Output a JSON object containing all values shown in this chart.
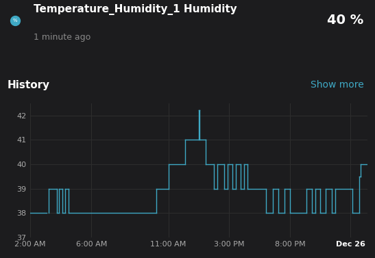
{
  "background_color": "#1c1c1e",
  "plot_bg_color": "#1c1c1e",
  "grid_color": "#2e2e2e",
  "line_color": "#3fa9c5",
  "title_text": "Temperature_Humidity_1 Humidity",
  "subtitle_text": "1 minute ago",
  "value_text": "40 %",
  "history_text": "History",
  "show_more_text": "Show more",
  "show_more_color": "#3fa9c5",
  "title_color": "#ffffff",
  "subtitle_color": "#888888",
  "value_color": "#ffffff",
  "history_color": "#ffffff",
  "ylabel_text": "%",
  "ylim": [
    37,
    42.5
  ],
  "yticks": [
    37,
    38,
    39,
    40,
    41,
    42
  ],
  "xtick_labels": [
    "2:00 AM",
    "6:00 AM",
    "11:00 AM",
    "3:00 PM",
    "8:00 PM",
    "Dec 26"
  ],
  "xtick_positions": [
    0.0,
    0.182,
    0.41,
    0.59,
    0.77,
    0.95
  ],
  "segments": [
    {
      "x": [
        0.0,
        0.05
      ],
      "y": [
        38.0,
        38.0
      ]
    },
    {
      "x": [
        0.055,
        0.055
      ],
      "y": [
        38.0,
        39.0
      ]
    },
    {
      "x": [
        0.055,
        0.08
      ],
      "y": [
        39.0,
        39.0
      ]
    },
    {
      "x": [
        0.08,
        0.08
      ],
      "y": [
        39.0,
        38.0
      ]
    },
    {
      "x": [
        0.08,
        0.085
      ],
      "y": [
        38.0,
        38.0
      ]
    },
    {
      "x": [
        0.085,
        0.085
      ],
      "y": [
        38.0,
        39.0
      ]
    },
    {
      "x": [
        0.085,
        0.095
      ],
      "y": [
        39.0,
        39.0
      ]
    },
    {
      "x": [
        0.095,
        0.095
      ],
      "y": [
        39.0,
        38.0
      ]
    },
    {
      "x": [
        0.095,
        0.105
      ],
      "y": [
        38.0,
        38.0
      ]
    },
    {
      "x": [
        0.105,
        0.105
      ],
      "y": [
        38.0,
        39.0
      ]
    },
    {
      "x": [
        0.105,
        0.115
      ],
      "y": [
        39.0,
        39.0
      ]
    },
    {
      "x": [
        0.115,
        0.115
      ],
      "y": [
        39.0,
        38.0
      ]
    },
    {
      "x": [
        0.115,
        0.375
      ],
      "y": [
        38.0,
        38.0
      ]
    },
    {
      "x": [
        0.375,
        0.375
      ],
      "y": [
        38.0,
        39.0
      ]
    },
    {
      "x": [
        0.375,
        0.41
      ],
      "y": [
        39.0,
        39.0
      ]
    },
    {
      "x": [
        0.41,
        0.41
      ],
      "y": [
        39.0,
        40.0
      ]
    },
    {
      "x": [
        0.41,
        0.46
      ],
      "y": [
        40.0,
        40.0
      ]
    },
    {
      "x": [
        0.46,
        0.46
      ],
      "y": [
        40.0,
        41.0
      ]
    },
    {
      "x": [
        0.46,
        0.5
      ],
      "y": [
        41.0,
        41.0
      ]
    },
    {
      "x": [
        0.5,
        0.5
      ],
      "y": [
        41.0,
        42.2
      ]
    },
    {
      "x": [
        0.5,
        0.502
      ],
      "y": [
        42.2,
        42.2
      ]
    },
    {
      "x": [
        0.502,
        0.502
      ],
      "y": [
        42.2,
        41.0
      ]
    },
    {
      "x": [
        0.502,
        0.52
      ],
      "y": [
        41.0,
        41.0
      ]
    },
    {
      "x": [
        0.52,
        0.52
      ],
      "y": [
        41.0,
        40.0
      ]
    },
    {
      "x": [
        0.52,
        0.545
      ],
      "y": [
        40.0,
        40.0
      ]
    },
    {
      "x": [
        0.545,
        0.545
      ],
      "y": [
        40.0,
        39.0
      ]
    },
    {
      "x": [
        0.545,
        0.555
      ],
      "y": [
        39.0,
        39.0
      ]
    },
    {
      "x": [
        0.555,
        0.555
      ],
      "y": [
        39.0,
        40.0
      ]
    },
    {
      "x": [
        0.555,
        0.575
      ],
      "y": [
        40.0,
        40.0
      ]
    },
    {
      "x": [
        0.575,
        0.575
      ],
      "y": [
        40.0,
        39.0
      ]
    },
    {
      "x": [
        0.575,
        0.585
      ],
      "y": [
        39.0,
        39.0
      ]
    },
    {
      "x": [
        0.585,
        0.585
      ],
      "y": [
        39.0,
        40.0
      ]
    },
    {
      "x": [
        0.585,
        0.6
      ],
      "y": [
        40.0,
        40.0
      ]
    },
    {
      "x": [
        0.6,
        0.6
      ],
      "y": [
        40.0,
        39.0
      ]
    },
    {
      "x": [
        0.6,
        0.61
      ],
      "y": [
        39.0,
        39.0
      ]
    },
    {
      "x": [
        0.61,
        0.61
      ],
      "y": [
        39.0,
        40.0
      ]
    },
    {
      "x": [
        0.61,
        0.625
      ],
      "y": [
        40.0,
        40.0
      ]
    },
    {
      "x": [
        0.625,
        0.625
      ],
      "y": [
        40.0,
        39.0
      ]
    },
    {
      "x": [
        0.625,
        0.635
      ],
      "y": [
        39.0,
        39.0
      ]
    },
    {
      "x": [
        0.635,
        0.635
      ],
      "y": [
        39.0,
        40.0
      ]
    },
    {
      "x": [
        0.635,
        0.645
      ],
      "y": [
        40.0,
        40.0
      ]
    },
    {
      "x": [
        0.645,
        0.645
      ],
      "y": [
        40.0,
        39.0
      ]
    },
    {
      "x": [
        0.645,
        0.7
      ],
      "y": [
        39.0,
        39.0
      ]
    },
    {
      "x": [
        0.7,
        0.7
      ],
      "y": [
        39.0,
        38.0
      ]
    },
    {
      "x": [
        0.7,
        0.72
      ],
      "y": [
        38.0,
        38.0
      ]
    },
    {
      "x": [
        0.72,
        0.72
      ],
      "y": [
        38.0,
        39.0
      ]
    },
    {
      "x": [
        0.72,
        0.735
      ],
      "y": [
        39.0,
        39.0
      ]
    },
    {
      "x": [
        0.735,
        0.735
      ],
      "y": [
        39.0,
        38.0
      ]
    },
    {
      "x": [
        0.735,
        0.755
      ],
      "y": [
        38.0,
        38.0
      ]
    },
    {
      "x": [
        0.755,
        0.755
      ],
      "y": [
        38.0,
        39.0
      ]
    },
    {
      "x": [
        0.755,
        0.77
      ],
      "y": [
        39.0,
        39.0
      ]
    },
    {
      "x": [
        0.77,
        0.77
      ],
      "y": [
        39.0,
        38.0
      ]
    },
    {
      "x": [
        0.77,
        0.82
      ],
      "y": [
        38.0,
        38.0
      ]
    },
    {
      "x": [
        0.82,
        0.82
      ],
      "y": [
        38.0,
        39.0
      ]
    },
    {
      "x": [
        0.82,
        0.835
      ],
      "y": [
        39.0,
        39.0
      ]
    },
    {
      "x": [
        0.835,
        0.835
      ],
      "y": [
        39.0,
        38.0
      ]
    },
    {
      "x": [
        0.835,
        0.845
      ],
      "y": [
        38.0,
        38.0
      ]
    },
    {
      "x": [
        0.845,
        0.845
      ],
      "y": [
        38.0,
        39.0
      ]
    },
    {
      "x": [
        0.845,
        0.86
      ],
      "y": [
        39.0,
        39.0
      ]
    },
    {
      "x": [
        0.86,
        0.86
      ],
      "y": [
        39.0,
        38.0
      ]
    },
    {
      "x": [
        0.86,
        0.875
      ],
      "y": [
        38.0,
        38.0
      ]
    },
    {
      "x": [
        0.875,
        0.875
      ],
      "y": [
        38.0,
        39.0
      ]
    },
    {
      "x": [
        0.875,
        0.895
      ],
      "y": [
        39.0,
        39.0
      ]
    },
    {
      "x": [
        0.895,
        0.895
      ],
      "y": [
        39.0,
        38.0
      ]
    },
    {
      "x": [
        0.895,
        0.905
      ],
      "y": [
        38.0,
        38.0
      ]
    },
    {
      "x": [
        0.905,
        0.905
      ],
      "y": [
        38.0,
        39.0
      ]
    },
    {
      "x": [
        0.905,
        0.955
      ],
      "y": [
        39.0,
        39.0
      ]
    },
    {
      "x": [
        0.955,
        0.955
      ],
      "y": [
        39.0,
        38.0
      ]
    },
    {
      "x": [
        0.955,
        0.975
      ],
      "y": [
        38.0,
        38.0
      ]
    },
    {
      "x": [
        0.975,
        0.975
      ],
      "y": [
        38.0,
        39.5
      ]
    },
    {
      "x": [
        0.975,
        0.98
      ],
      "y": [
        39.5,
        39.5
      ]
    },
    {
      "x": [
        0.98,
        0.98
      ],
      "y": [
        39.5,
        40.0
      ]
    },
    {
      "x": [
        0.98,
        1.0
      ],
      "y": [
        40.0,
        40.0
      ]
    }
  ]
}
